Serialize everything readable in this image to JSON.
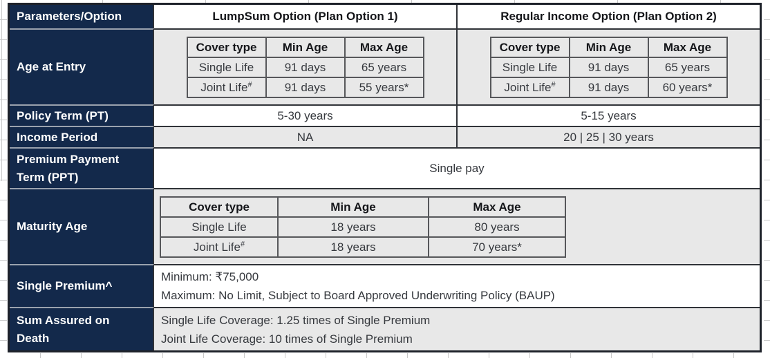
{
  "colors": {
    "navy": "#13294b",
    "row_gray": "#e8e8e8",
    "border_dark": "#303338",
    "inner_border": "#56575a",
    "navy_sep": "#9aa2ae",
    "grid": "#c8c8c8",
    "text_body": "#36393e",
    "text_head": "#141519"
  },
  "table": {
    "header": {
      "param_col": "Parameters/Option",
      "option1": "LumpSum Option (Plan Option 1)",
      "option2": "Regular Income Option (Plan Option 2)"
    },
    "age_at_entry": {
      "label": "Age at Entry",
      "columns": [
        "Cover type",
        "Min Age",
        "Max Age"
      ],
      "lumpsum_rows": [
        {
          "cover": "Single Life",
          "sup": "",
          "min": "91 days",
          "max": "65 years"
        },
        {
          "cover": "Joint Life",
          "sup": "#",
          "min": "91 days",
          "max": "55 years*"
        }
      ],
      "regular_rows": [
        {
          "cover": "Single Life",
          "sup": "",
          "min": "91 days",
          "max": "65 years"
        },
        {
          "cover": "Joint Life",
          "sup": "#",
          "min": "91 days",
          "max": "60 years*"
        }
      ]
    },
    "policy_term": {
      "label": "Policy Term (PT)",
      "lumpsum": "5-30 years",
      "regular": "5-15 years"
    },
    "income_period": {
      "label": "Income Period",
      "lumpsum": "NA",
      "regular": "20 | 25 | 30 years"
    },
    "ppt": {
      "label": "Premium Payment Term (PPT)",
      "value": "Single pay"
    },
    "maturity_age": {
      "label": "Maturity Age",
      "columns": [
        "Cover type",
        "Min Age",
        "Max Age"
      ],
      "rows": [
        {
          "cover": "Single Life",
          "sup": "",
          "min": "18 years",
          "max": "80 years"
        },
        {
          "cover": "Joint Life",
          "sup": "#",
          "min": "18 years",
          "max": "70 years*"
        }
      ]
    },
    "single_premium": {
      "label": "Single Premium^",
      "line1": "Minimum: ₹75,000",
      "line2": "Maximum: No Limit, Subject to Board Approved Underwriting Policy (BAUP)"
    },
    "sum_assured": {
      "label": "Sum Assured on Death",
      "line1": "Single Life Coverage: 1.25 times of Single Premium",
      "line2": "Joint Life Coverage: 10 times of Single Premium"
    }
  }
}
